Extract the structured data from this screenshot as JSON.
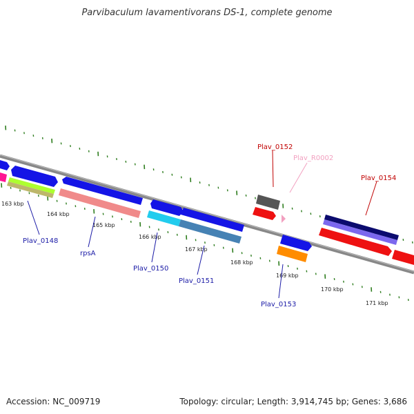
{
  "title": "Parvibaculum lavamentivorans DS-1, complete genome",
  "footer": {
    "accession": "Accession: NC_009719",
    "summary": "Topology: circular; Length: 3,914,745 bp; Genes: 3,686"
  },
  "ticks": [
    "163 kbp",
    "164 kbp",
    "165 kbp",
    "166 kbp",
    "167 kbp",
    "168 kbp",
    "169 kbp",
    "170 kbp",
    "171 kbp"
  ],
  "gene_labels": [
    {
      "text": "Plav_0148",
      "color": "#1a1aa6"
    },
    {
      "text": "rpsA",
      "color": "#1a1aa6"
    },
    {
      "text": "Plav_0150",
      "color": "#1a1aa6"
    },
    {
      "text": "Plav_0151",
      "color": "#1a1aa6"
    },
    {
      "text": "Plav_0152",
      "color": "#c00000"
    },
    {
      "text": "Plav_R0002",
      "color": "#f2a0c0"
    },
    {
      "text": "Plav_0153",
      "color": "#1a1aa6"
    },
    {
      "text": "Plav_0154",
      "color": "#c00000"
    }
  ],
  "colors": {
    "backbone": "#888888",
    "tick": "#2e7d1e",
    "cds_blue": "#1414e6",
    "rrna_red": "#ee1111",
    "pink": "#f08a8a",
    "cyan": "#22ccee",
    "steel": "#4682b4",
    "gray": "#555555",
    "orange": "#ff8c00",
    "navy": "#0b0b6e",
    "lavender": "#7b68ee",
    "lime": "#adff2f",
    "khaki": "#bdb76b",
    "magenta": "#ff1493"
  }
}
